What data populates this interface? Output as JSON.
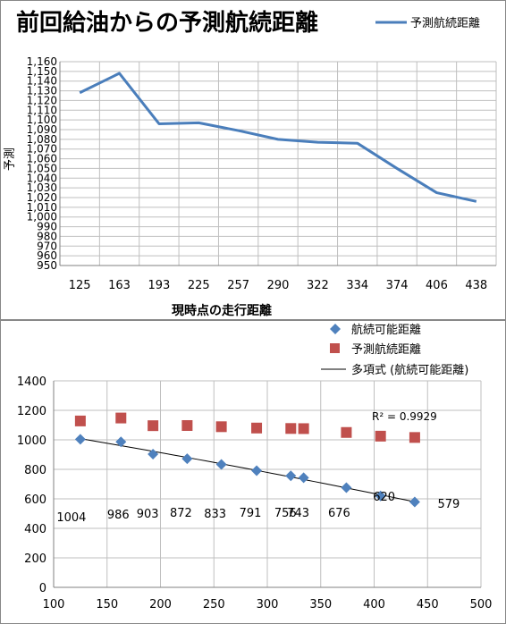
{
  "chart_data": [
    {
      "type": "line",
      "title": "前回給油からの予測航続距離",
      "xlabel": "現時点の走行距離",
      "ylabel": "予測",
      "categories": [
        "125",
        "163",
        "193",
        "225",
        "257",
        "290",
        "322",
        "334",
        "374",
        "406",
        "438"
      ],
      "series": [
        {
          "name": "予測航続距離",
          "color": "#4a7ebb",
          "values": [
            1128,
            1148,
            1096,
            1097,
            1089,
            1080,
            1077,
            1076,
            1050,
            1025,
            1016
          ]
        }
      ],
      "ylim": [
        950,
        1160
      ],
      "yticks": [
        "950",
        "960",
        "970",
        "980",
        "990",
        "1,000",
        "1,010",
        "1,020",
        "1,030",
        "1,040",
        "1,050",
        "1,060",
        "1,070",
        "1,080",
        "1,090",
        "1,100",
        "1,110",
        "1,120",
        "1,130",
        "1,140",
        "1,150",
        "1,160"
      ],
      "grid": true,
      "legend": "top-right"
    },
    {
      "type": "scatter",
      "xlim": [
        100,
        500
      ],
      "ylim": [
        0,
        1400
      ],
      "xticks": [
        "100",
        "150",
        "200",
        "250",
        "300",
        "350",
        "400",
        "450",
        "500"
      ],
      "yticks": [
        "0",
        "200",
        "400",
        "600",
        "800",
        "1000",
        "1200",
        "1400"
      ],
      "grid": true,
      "legend": "top-right",
      "series": [
        {
          "name": "航続可能距離",
          "marker": "diamond",
          "color": "#4f81bd",
          "x": [
            125,
            163,
            193,
            225,
            257,
            290,
            322,
            334,
            374,
            406,
            438
          ],
          "y": [
            1004,
            986,
            903,
            872,
            833,
            791,
            756,
            743,
            676,
            620,
            579
          ],
          "labels": [
            "1004",
            "986",
            "903",
            "872",
            "833",
            "791",
            "756",
            "743",
            "676",
            "620",
            "579"
          ]
        },
        {
          "name": "予測航続距離",
          "marker": "square",
          "color": "#c0504d",
          "x": [
            125,
            163,
            193,
            225,
            257,
            290,
            322,
            334,
            374,
            406,
            438
          ],
          "y": [
            1128,
            1148,
            1096,
            1097,
            1089,
            1080,
            1077,
            1076,
            1050,
            1025,
            1016
          ]
        }
      ],
      "trendline": {
        "name": "多項式 (航続可能距離)",
        "color": "#000000",
        "r2": "R² = 0.9929"
      }
    }
  ]
}
